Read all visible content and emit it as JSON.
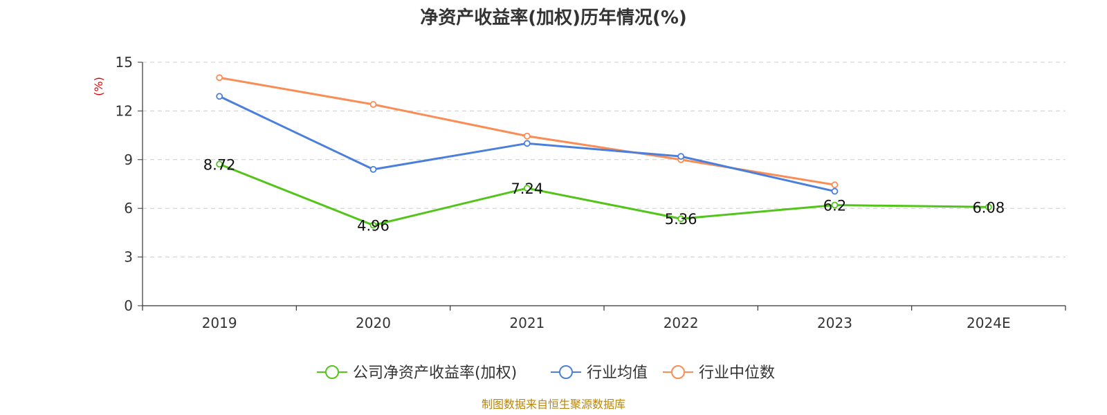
{
  "chart_data": {
    "type": "line",
    "title": "净资产收益率(加权)历年情况(%)",
    "ylabel": "(%)",
    "categories": [
      "2019",
      "2020",
      "2021",
      "2022",
      "2023",
      "2024E"
    ],
    "ylim": [
      0,
      15
    ],
    "yticks": [
      0,
      3,
      6,
      9,
      12,
      15
    ],
    "grid": true,
    "legend_position": "bottom",
    "series": [
      {
        "name": "公司净资产收益率(加权)",
        "color": "#52c41a",
        "values": [
          8.72,
          4.96,
          7.24,
          5.36,
          6.2,
          6.08
        ],
        "labels": [
          "8.72",
          "4.96",
          "7.24",
          "5.36",
          "6.2",
          "6.08"
        ]
      },
      {
        "name": "行业均值",
        "color": "#4a7fdc",
        "values": [
          12.9,
          8.4,
          10.0,
          9.2,
          7.05,
          null
        ]
      },
      {
        "name": "行业中位数",
        "color": "#fa8c55",
        "values": [
          14.05,
          12.4,
          10.45,
          9.0,
          7.45,
          null
        ]
      }
    ]
  },
  "source": "制图数据来自恒生聚源数据库"
}
